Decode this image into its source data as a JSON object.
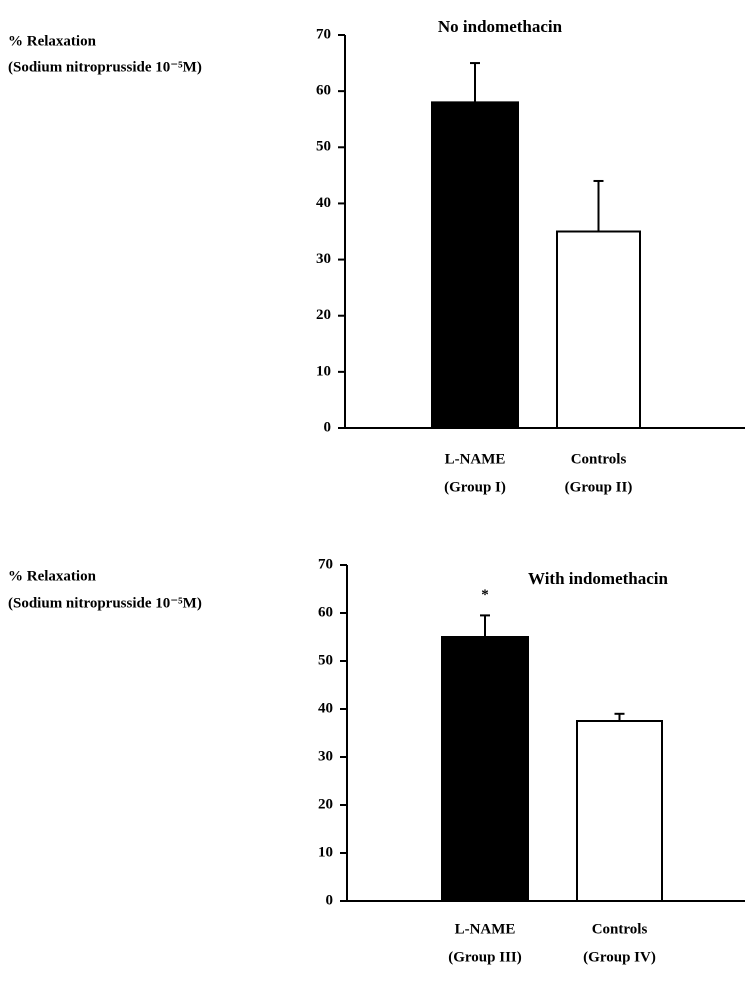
{
  "chart_data": [
    {
      "type": "bar",
      "title": "No indomethacin",
      "ylabel": [
        "% Relaxation",
        "(Sodium nitroprusside 10⁻⁵M)"
      ],
      "categories": [
        [
          "L-NAME",
          "(Group I)"
        ],
        [
          "Controls",
          "(Group II)"
        ]
      ],
      "values": [
        58,
        35
      ],
      "errors": [
        7,
        9
      ],
      "colors": [
        "#000000",
        "#ffffff"
      ],
      "ylim": [
        0,
        70
      ],
      "yticks": [
        0,
        10,
        20,
        30,
        40,
        50,
        60,
        70
      ]
    },
    {
      "type": "bar",
      "title": "With indomethacin",
      "ylabel": [
        "% Relaxation",
        "(Sodium nitroprusside 10⁻⁵M)"
      ],
      "categories": [
        [
          "L-NAME",
          "(Group III)"
        ],
        [
          "Controls",
          "(Group IV)"
        ]
      ],
      "values": [
        55,
        37.5
      ],
      "errors": [
        4.5,
        1.5
      ],
      "colors": [
        "#000000",
        "#ffffff"
      ],
      "annotation": "*",
      "ylim": [
        0,
        70
      ],
      "yticks": [
        0,
        10,
        20,
        30,
        40,
        50,
        60,
        70
      ]
    }
  ]
}
